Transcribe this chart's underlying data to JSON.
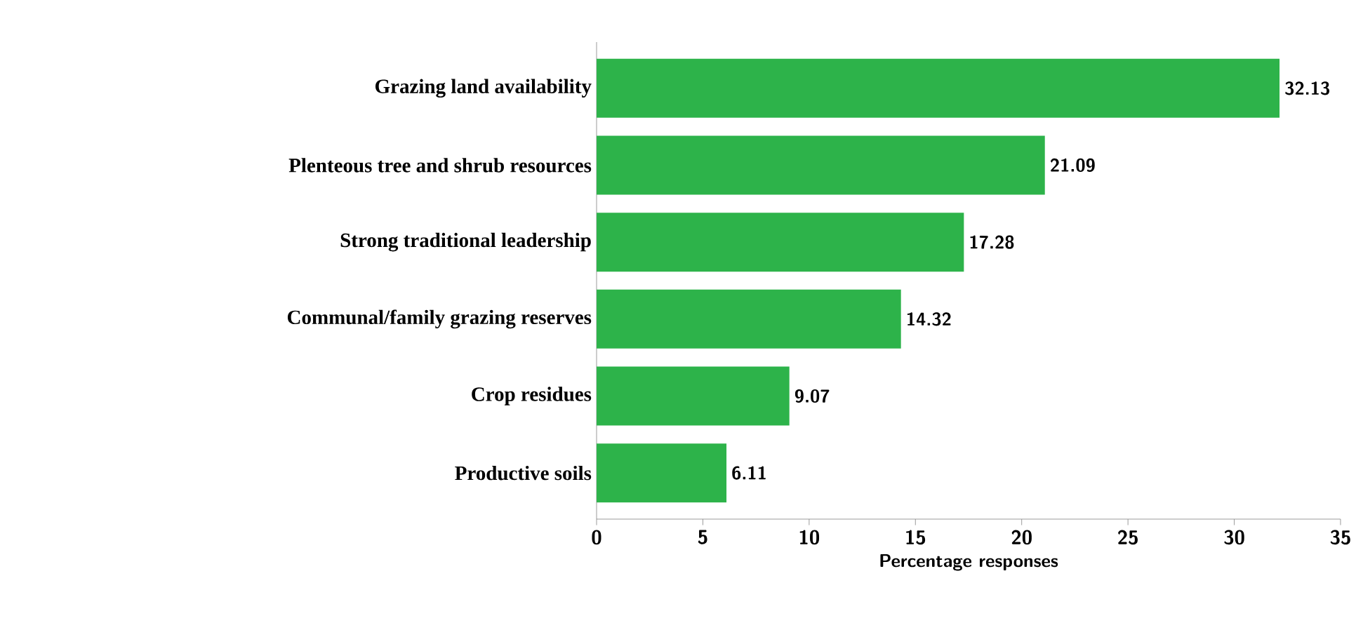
{
  "chart_data": {
    "type": "bar",
    "orientation": "horizontal",
    "categories": [
      "Grazing land availability",
      "Plenteous  tree and shrub resources",
      "Strong traditional leadership",
      "Communal/family grazing reserves",
      "Crop residues",
      "Productive soils"
    ],
    "values": [
      32.13,
      21.09,
      17.28,
      14.32,
      9.07,
      6.11
    ],
    "color": "#2db34a",
    "xlabel": "Percentage responses",
    "xlim": [
      0,
      35
    ],
    "xticks": [
      0,
      5,
      10,
      15,
      20,
      25,
      30,
      35
    ],
    "data_labels": true
  }
}
